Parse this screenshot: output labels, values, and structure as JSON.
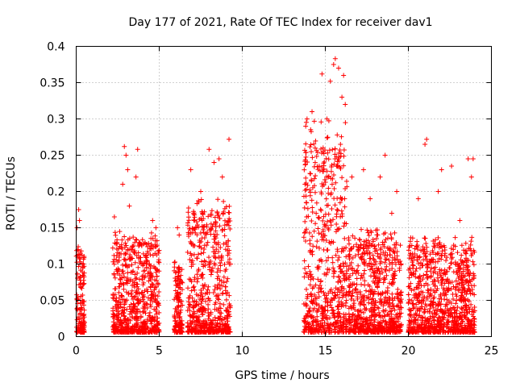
{
  "chart_data": {
    "type": "scatter",
    "title": "Day 177 of 2021, Rate Of TEC Index for receiver dav1",
    "xlabel": "GPS time / hours",
    "ylabel": "ROTI / TECUs",
    "xlim": [
      0,
      25
    ],
    "ylim": [
      0,
      0.4
    ],
    "x_ticks": [
      0,
      5,
      10,
      15,
      20,
      25
    ],
    "y_ticks": [
      0,
      0.05,
      0.1,
      0.15,
      0.2,
      0.25,
      0.3,
      0.35,
      0.4
    ],
    "grid": true,
    "marker": "plus",
    "color": "#ff0000",
    "series": [
      {
        "x_start": 0.0,
        "x_end": 0.5,
        "dense_y_max": 0.11,
        "outliers": [
          [
            0.15,
            0.175
          ],
          [
            0.2,
            0.16
          ],
          [
            0.05,
            0.15
          ],
          [
            0.1,
            0.12
          ]
        ]
      },
      {
        "x_start": 2.2,
        "x_end": 5.0,
        "dense_y_max": 0.13,
        "outliers": [
          [
            2.9,
            0.262
          ],
          [
            3.0,
            0.25
          ],
          [
            3.7,
            0.258
          ],
          [
            3.1,
            0.23
          ],
          [
            3.6,
            0.22
          ],
          [
            2.8,
            0.21
          ],
          [
            4.6,
            0.16
          ],
          [
            2.3,
            0.165
          ],
          [
            4.8,
            0.15
          ],
          [
            3.2,
            0.18
          ]
        ]
      },
      {
        "x_start": 5.9,
        "x_end": 6.4,
        "dense_y_max": 0.09,
        "outliers": [
          [
            6.1,
            0.15
          ],
          [
            6.2,
            0.14
          ]
        ]
      },
      {
        "x_start": 6.7,
        "x_end": 9.3,
        "dense_y_max": 0.17,
        "outliers": [
          [
            9.2,
            0.272
          ],
          [
            8.0,
            0.258
          ],
          [
            8.6,
            0.245
          ],
          [
            8.3,
            0.24
          ],
          [
            6.9,
            0.23
          ],
          [
            7.5,
            0.2
          ],
          [
            8.8,
            0.22
          ],
          [
            7.2,
            0.15
          ]
        ]
      },
      {
        "x_start": 13.7,
        "x_end": 16.3,
        "dense_y_max": 0.26,
        "outliers": [
          [
            15.6,
            0.383
          ],
          [
            15.5,
            0.375
          ],
          [
            15.8,
            0.37
          ],
          [
            14.8,
            0.362
          ],
          [
            16.1,
            0.36
          ],
          [
            15.3,
            0.352
          ],
          [
            16.2,
            0.32
          ],
          [
            14.2,
            0.31
          ],
          [
            13.9,
            0.3
          ],
          [
            15.1,
            0.3
          ],
          [
            16.0,
            0.33
          ]
        ]
      },
      {
        "x_start": 16.4,
        "x_end": 19.6,
        "dense_y_max": 0.13,
        "outliers": [
          [
            18.6,
            0.25
          ],
          [
            17.3,
            0.23
          ],
          [
            18.3,
            0.22
          ],
          [
            19.3,
            0.2
          ],
          [
            17.7,
            0.19
          ],
          [
            16.6,
            0.22
          ],
          [
            19.0,
            0.17
          ]
        ]
      },
      {
        "x_start": 20.0,
        "x_end": 24.0,
        "dense_y_max": 0.12,
        "outliers": [
          [
            21.1,
            0.272
          ],
          [
            21.0,
            0.265
          ],
          [
            23.9,
            0.245
          ],
          [
            23.6,
            0.245
          ],
          [
            22.6,
            0.235
          ],
          [
            23.8,
            0.22
          ],
          [
            21.8,
            0.2
          ],
          [
            22.0,
            0.23
          ],
          [
            20.6,
            0.19
          ],
          [
            23.1,
            0.16
          ]
        ]
      }
    ]
  }
}
